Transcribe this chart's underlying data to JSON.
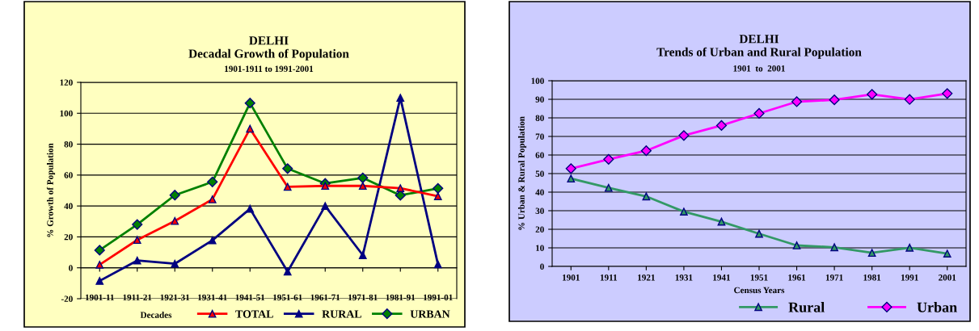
{
  "chart_data": [
    {
      "type": "line",
      "title": "DELHI\nDecadal Growth of Population",
      "subtitle": "1901-1911 to 1991-2001",
      "xlabel": "Decades",
      "ylabel": "% Growth of Population",
      "categories": [
        "1901-11",
        "1911-21",
        "1921-31",
        "1931-41",
        "1941-51",
        "1951-61",
        "1961-71",
        "1971-81",
        "1981-91",
        "1991-01"
      ],
      "series": [
        {
          "name": "TOTAL",
          "color": "#ff0000",
          "marker": "triangle",
          "values": [
            2.0,
            18,
            30.3,
            44.3,
            90,
            52.4,
            53,
            53,
            51.5,
            46.3
          ]
        },
        {
          "name": "RURAL",
          "color": "#000080",
          "marker": "triangle",
          "values": [
            -8.5,
            4.7,
            2.6,
            17.8,
            38.2,
            -2.5,
            40,
            8.2,
            110,
            2.2
          ]
        },
        {
          "name": "URBAN",
          "color": "#008000",
          "marker": "diamond",
          "values": [
            11.4,
            28,
            47,
            55.6,
            106.6,
            64.2,
            54.6,
            58.2,
            46.9,
            51.4
          ]
        }
      ],
      "ylim": [
        -20,
        120
      ],
      "yticks": [
        -20,
        0,
        20,
        40,
        60,
        80,
        100,
        120
      ],
      "grid": "y",
      "legend": "bottom right"
    },
    {
      "type": "line",
      "title": "DELHI\nTrends of Urban and Rural Population",
      "subtitle": "1901  to  2001",
      "xlabel": "Census Years",
      "ylabel": "% Urban & Rural Population",
      "categories": [
        "1901",
        "1911",
        "1921",
        "1931",
        "1941",
        "1951",
        "1961",
        "1971",
        "1981",
        "1991",
        "2001"
      ],
      "series": [
        {
          "name": "Rural",
          "color": "#339966",
          "marker": "triangle",
          "values": [
            47.3,
            42.3,
            37.7,
            29.5,
            24.1,
            17.6,
            11.3,
            10.3,
            7.3,
            10.1,
            6.9
          ]
        },
        {
          "name": "Urban",
          "color": "#ff00ff",
          "marker": "diamond",
          "values": [
            52.7,
            57.7,
            62.3,
            70.5,
            75.9,
            82.4,
            88.7,
            89.7,
            92.7,
            89.9,
            93.1
          ]
        }
      ],
      "ylim": [
        0,
        100
      ],
      "yticks": [
        0,
        10,
        20,
        30,
        40,
        50,
        60,
        70,
        80,
        90,
        100
      ],
      "grid": "y",
      "legend": "bottom right"
    }
  ]
}
